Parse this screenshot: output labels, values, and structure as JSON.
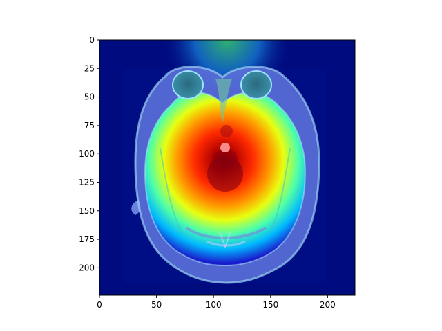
{
  "figure": {
    "image_description_semantic": "axial brain MRI slice with jet-colormap attention heatmap overlay",
    "colormap": [
      "#00007f",
      "#0000ff",
      "#00ffff",
      "#ffff00",
      "#ff0000",
      "#7f0000"
    ],
    "background": "#ffffff"
  },
  "axes": {
    "x_ticks": [
      {
        "value": 0,
        "label": "0"
      },
      {
        "value": 50,
        "label": "50"
      },
      {
        "value": 100,
        "label": "100"
      },
      {
        "value": 150,
        "label": "150"
      },
      {
        "value": 200,
        "label": "200"
      }
    ],
    "y_ticks": [
      {
        "value": 0,
        "label": "0"
      },
      {
        "value": 25,
        "label": "25"
      },
      {
        "value": 50,
        "label": "50"
      },
      {
        "value": 75,
        "label": "75"
      },
      {
        "value": 100,
        "label": "100"
      },
      {
        "value": 125,
        "label": "125"
      },
      {
        "value": 150,
        "label": "150"
      },
      {
        "value": 175,
        "label": "175"
      },
      {
        "value": 200,
        "label": "200"
      }
    ],
    "xlim": [
      0,
      224
    ],
    "ylim": [
      224,
      0
    ]
  }
}
